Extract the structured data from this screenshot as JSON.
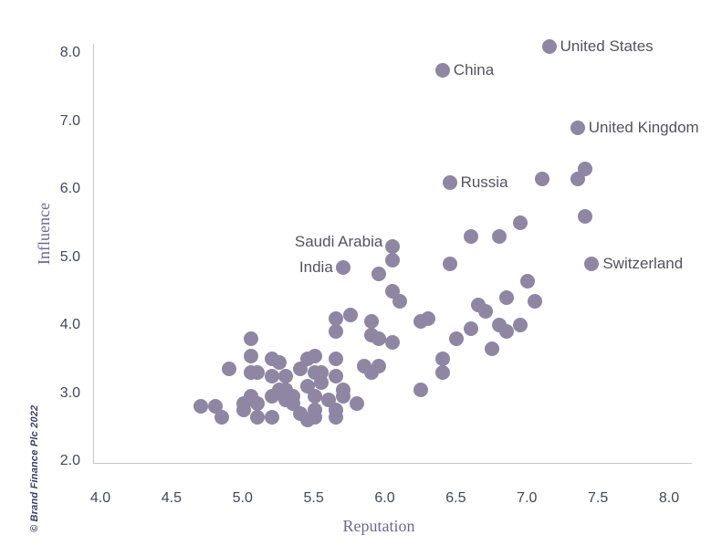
{
  "chart_data": {
    "type": "scatter",
    "xlabel": "Reputation",
    "ylabel": "Influence",
    "xlim": [
      4.0,
      8.0
    ],
    "ylim": [
      2.0,
      8.0
    ],
    "x_ticks": [
      4.0,
      4.5,
      5.0,
      5.5,
      6.0,
      6.5,
      7.0,
      7.5,
      8.0
    ],
    "y_ticks": [
      2.0,
      3.0,
      4.0,
      5.0,
      6.0,
      7.0,
      8.0
    ],
    "grid": false,
    "legend": "none",
    "point_color": "#8e86a2",
    "labeled_points": [
      {
        "label": "United States",
        "x": 7.15,
        "y": 8.1,
        "label_side": "right",
        "label_dy": 0
      },
      {
        "label": "China",
        "x": 6.4,
        "y": 7.75,
        "label_side": "right",
        "label_dy": 0
      },
      {
        "label": "United Kingdom",
        "x": 7.35,
        "y": 6.9,
        "label_side": "right",
        "label_dy": 0
      },
      {
        "label": "Russia",
        "x": 6.45,
        "y": 6.1,
        "label_side": "right",
        "label_dy": 0
      },
      {
        "label": "Saudi Arabia",
        "x": 6.05,
        "y": 5.15,
        "label_side": "left",
        "label_dy": -5
      },
      {
        "label": "India",
        "x": 5.7,
        "y": 4.85,
        "label_side": "left",
        "label_dy": 0
      },
      {
        "label": "Switzerland",
        "x": 7.45,
        "y": 4.9,
        "label_side": "right",
        "label_dy": 0
      }
    ],
    "points": [
      [
        7.1,
        6.15
      ],
      [
        7.4,
        6.3
      ],
      [
        7.35,
        6.15
      ],
      [
        7.4,
        5.6
      ],
      [
        6.95,
        5.5
      ],
      [
        6.6,
        5.3
      ],
      [
        6.8,
        5.3
      ],
      [
        6.45,
        4.9
      ],
      [
        7.0,
        4.65
      ],
      [
        6.85,
        4.4
      ],
      [
        7.05,
        4.35
      ],
      [
        6.65,
        4.3
      ],
      [
        6.7,
        4.2
      ],
      [
        6.6,
        3.95
      ],
      [
        6.8,
        4.0
      ],
      [
        6.85,
        3.9
      ],
      [
        6.95,
        4.0
      ],
      [
        6.5,
        3.8
      ],
      [
        6.75,
        3.65
      ],
      [
        6.25,
        4.05
      ],
      [
        6.3,
        4.1
      ],
      [
        6.25,
        3.05
      ],
      [
        6.4,
        3.5
      ],
      [
        6.4,
        3.3
      ],
      [
        6.05,
        4.95
      ],
      [
        5.95,
        4.75
      ],
      [
        6.05,
        4.5
      ],
      [
        6.1,
        4.35
      ],
      [
        5.75,
        4.15
      ],
      [
        5.65,
        4.1
      ],
      [
        5.65,
        3.9
      ],
      [
        5.9,
        4.05
      ],
      [
        5.9,
        3.85
      ],
      [
        5.95,
        3.8
      ],
      [
        6.05,
        3.75
      ],
      [
        5.85,
        3.4
      ],
      [
        5.95,
        3.4
      ],
      [
        5.9,
        3.3
      ],
      [
        5.8,
        2.85
      ],
      [
        5.05,
        3.8
      ],
      [
        5.05,
        3.55
      ],
      [
        4.9,
        3.35
      ],
      [
        5.2,
        3.5
      ],
      [
        5.25,
        3.45
      ],
      [
        5.05,
        3.3
      ],
      [
        5.1,
        3.3
      ],
      [
        5.2,
        3.25
      ],
      [
        5.3,
        3.25
      ],
      [
        5.4,
        3.35
      ],
      [
        5.5,
        3.55
      ],
      [
        5.45,
        3.5
      ],
      [
        5.65,
        3.5
      ],
      [
        5.55,
        3.3
      ],
      [
        5.5,
        3.3
      ],
      [
        5.65,
        3.25
      ],
      [
        5.55,
        3.15
      ],
      [
        5.45,
        3.1
      ],
      [
        5.25,
        3.05
      ],
      [
        5.3,
        3.05
      ],
      [
        5.2,
        2.95
      ],
      [
        5.3,
        2.9
      ],
      [
        5.35,
        2.95
      ],
      [
        5.7,
        3.05
      ],
      [
        5.7,
        2.95
      ],
      [
        5.6,
        2.9
      ],
      [
        5.5,
        2.95
      ],
      [
        5.5,
        2.75
      ],
      [
        5.65,
        2.75
      ],
      [
        5.05,
        2.95
      ],
      [
        5.1,
        2.85
      ],
      [
        5.0,
        2.85
      ],
      [
        4.7,
        2.8
      ],
      [
        4.8,
        2.8
      ],
      [
        4.85,
        2.65
      ],
      [
        5.0,
        2.75
      ],
      [
        5.1,
        2.65
      ],
      [
        5.2,
        2.65
      ],
      [
        5.35,
        2.85
      ],
      [
        5.4,
        2.7
      ],
      [
        5.5,
        2.65
      ],
      [
        5.65,
        2.65
      ],
      [
        5.45,
        2.6
      ]
    ]
  },
  "footer": {
    "credit": "© Brand Finance Plc 2022"
  },
  "colors": {
    "point": "#8e86a2",
    "point_label": "#54535c",
    "tick_label": "#434656",
    "axis_title": "#6d6890",
    "axis_line": "#c6c6cc",
    "credit": "#3a3e63"
  }
}
